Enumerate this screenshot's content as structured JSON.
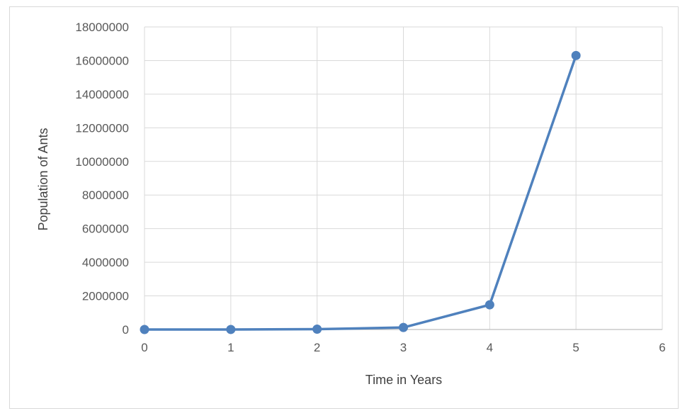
{
  "chart_data": {
    "type": "line",
    "title": "",
    "xlabel": "Time in Years",
    "ylabel": "Population of Ants",
    "xlim": [
      0,
      6
    ],
    "ylim": [
      0,
      18000000
    ],
    "x_ticks": [
      0,
      1,
      2,
      3,
      4,
      5,
      6
    ],
    "y_ticks": [
      0,
      2000000,
      4000000,
      6000000,
      8000000,
      10000000,
      12000000,
      14000000,
      16000000,
      18000000
    ],
    "grid": true,
    "legend": "none",
    "series": [
      {
        "color": "#4f81bd",
        "x": [
          0,
          1,
          2,
          3,
          4,
          5
        ],
        "y": [
          0,
          2000,
          20000,
          120000,
          1470000,
          16300000
        ]
      }
    ]
  }
}
